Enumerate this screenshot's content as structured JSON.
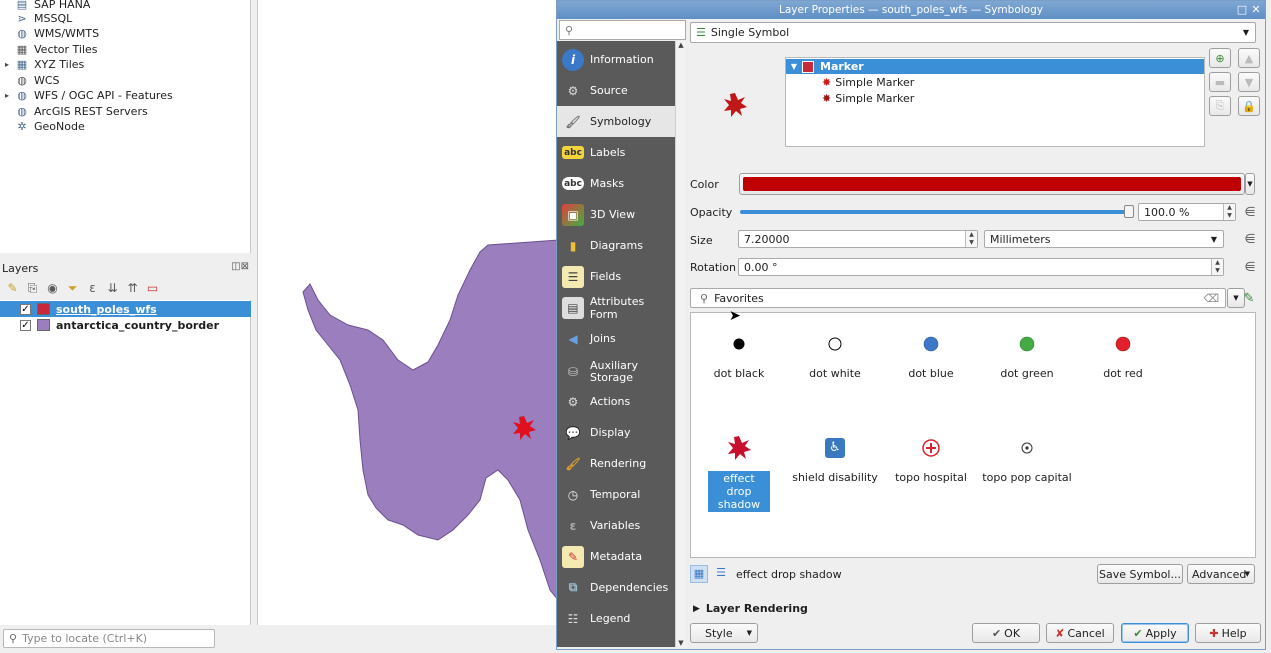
{
  "browser": {
    "items": [
      {
        "label": "SAP HANA",
        "icon": "database-icon",
        "expand": ""
      },
      {
        "label": "MSSQL",
        "icon": "mssql-icon",
        "expand": ""
      },
      {
        "label": "WMS/WMTS",
        "icon": "globe-icon",
        "expand": ""
      },
      {
        "label": "Vector Tiles",
        "icon": "grid-icon",
        "expand": ""
      },
      {
        "label": "XYZ Tiles",
        "icon": "grid-icon",
        "expand": "▸"
      },
      {
        "label": "WCS",
        "icon": "globe-icon",
        "expand": ""
      },
      {
        "label": "WFS / OGC API - Features",
        "icon": "globe-icon",
        "expand": "▸"
      },
      {
        "label": "ArcGIS REST Servers",
        "icon": "globe-icon",
        "expand": ""
      },
      {
        "label": "GeoNode",
        "icon": "geonode-icon",
        "expand": ""
      }
    ]
  },
  "layers": {
    "title": "Layers",
    "items": [
      {
        "name": "south_poles_wfs",
        "color": "#c8283a",
        "checked": "✓",
        "selected": true
      },
      {
        "name": "antarctica_country_border",
        "color": "#9b7ebd",
        "checked": "✓",
        "selected": false
      }
    ]
  },
  "locator": {
    "placeholder": "Type to locate (Ctrl+K)"
  },
  "dialog": {
    "title": "Layer Properties — south_poles_wfs — Symbology",
    "nav": [
      {
        "label": "Information",
        "icon": "information-icon"
      },
      {
        "label": "Source",
        "icon": "source-icon"
      },
      {
        "label": "Symbology",
        "icon": "symbology-icon"
      },
      {
        "label": "Labels",
        "icon": "labels-icon"
      },
      {
        "label": "Masks",
        "icon": "masks-icon"
      },
      {
        "label": "3D View",
        "icon": "3d-view-icon"
      },
      {
        "label": "Diagrams",
        "icon": "diagrams-icon"
      },
      {
        "label": "Fields",
        "icon": "fields-icon"
      },
      {
        "label": "Attributes Form",
        "icon": "attributes-form-icon"
      },
      {
        "label": "Joins",
        "icon": "joins-icon"
      },
      {
        "label": "Auxiliary Storage",
        "icon": "auxiliary-storage-icon"
      },
      {
        "label": "Actions",
        "icon": "actions-icon"
      },
      {
        "label": "Display",
        "icon": "display-icon"
      },
      {
        "label": "Rendering",
        "icon": "rendering-icon"
      },
      {
        "label": "Temporal",
        "icon": "temporal-icon"
      },
      {
        "label": "Variables",
        "icon": "variables-icon"
      },
      {
        "label": "Metadata",
        "icon": "metadata-icon"
      },
      {
        "label": "Dependencies",
        "icon": "dependencies-icon"
      },
      {
        "label": "Legend",
        "icon": "legend-icon"
      }
    ],
    "renderer": "Single Symbol",
    "tree": {
      "root": "Marker",
      "children": [
        "Simple Marker",
        "Simple Marker"
      ]
    },
    "color_label": "Color",
    "color_value": "#c00000",
    "opacity_label": "Opacity",
    "opacity_value": "100.0 %",
    "opacity_fraction": 1.0,
    "size_label": "Size",
    "size_value": "7.20000",
    "size_unit": "Millimeters",
    "rotation_label": "Rotation",
    "rotation_value": "0.00 °",
    "favorites": "Favorites",
    "symbols": [
      {
        "name": "dot  black",
        "kind": "dot",
        "color": "#000000",
        "selected": false
      },
      {
        "name": "dot  white",
        "kind": "ring",
        "color": "#ffffff",
        "selected": false
      },
      {
        "name": "dot blue",
        "kind": "dot",
        "color": "#3d78c8",
        "selected": false
      },
      {
        "name": "dot green",
        "kind": "dot",
        "color": "#44aa44",
        "selected": false
      },
      {
        "name": "dot red",
        "kind": "dot",
        "color": "#e0202a",
        "selected": false
      },
      {
        "name": "effect drop shadow",
        "kind": "star",
        "color": "#c8102e",
        "selected": true
      },
      {
        "name": "shield disability",
        "kind": "shield",
        "color": "#3a78c0",
        "selected": false
      },
      {
        "name": "topo hospital",
        "kind": "hospital",
        "color": "#e0202a",
        "selected": false
      },
      {
        "name": "topo pop capital",
        "kind": "capital",
        "color": "#333333",
        "selected": false
      }
    ],
    "current_symbol": "effect drop shadow",
    "save_symbol": "Save Symbol...",
    "advanced": "Advanced",
    "layer_rendering": "Layer Rendering",
    "style": "Style",
    "ok": "OK",
    "cancel": "Cancel",
    "apply": "Apply",
    "help": "Help"
  }
}
